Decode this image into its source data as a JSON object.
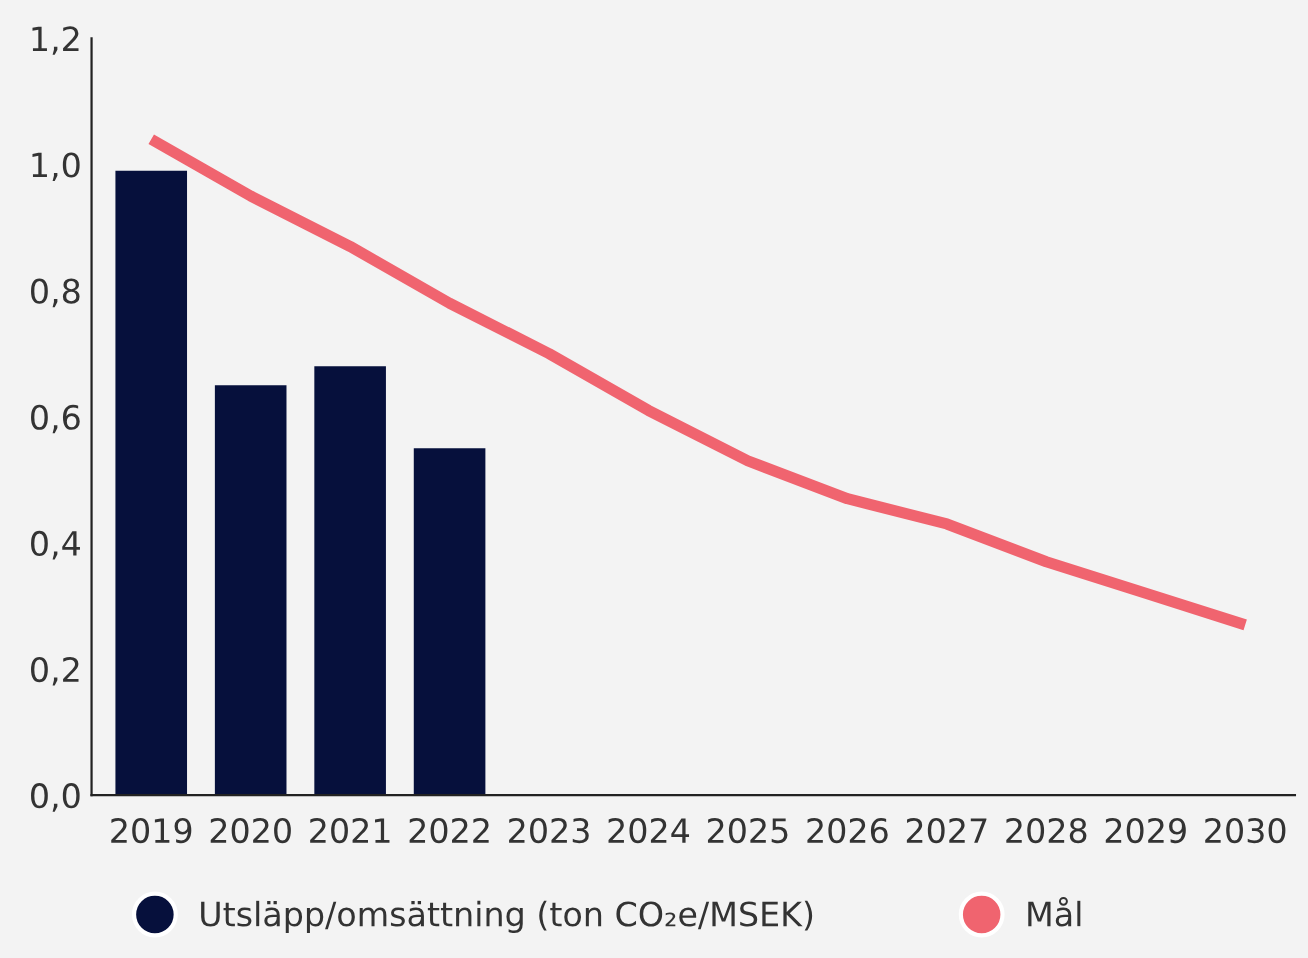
{
  "chart_data": {
    "type": "bar",
    "categories": [
      "2019",
      "2020",
      "2021",
      "2022",
      "2023",
      "2024",
      "2025",
      "2026",
      "2027",
      "2028",
      "2029",
      "2030"
    ],
    "series": [
      {
        "name": "Utsläpp/omsättning (ton CO₂e/MSEK)",
        "color": "#06103c",
        "values": [
          0.99,
          0.65,
          0.68,
          0.55,
          null,
          null,
          null,
          null,
          null,
          null,
          null,
          null
        ]
      },
      {
        "name": "Mål",
        "type": "line",
        "color": "#f0646f",
        "values": [
          1.04,
          0.95,
          0.87,
          0.78,
          0.7,
          0.61,
          0.53,
          0.47,
          0.43,
          0.37,
          0.32,
          0.27
        ]
      }
    ],
    "ylim": [
      0,
      1.2
    ],
    "yticks": [
      {
        "value": 0,
        "label": "0,0"
      },
      {
        "value": 0.2,
        "label": "0,2"
      },
      {
        "value": 0.4,
        "label": "0,4"
      },
      {
        "value": 0.6,
        "label": "0,6"
      },
      {
        "value": 0.8,
        "label": "0,8"
      },
      {
        "value": 1.0,
        "label": "1,0"
      },
      {
        "value": 1.2,
        "label": "1,2"
      }
    ],
    "grid": false,
    "legend": "bottom"
  }
}
